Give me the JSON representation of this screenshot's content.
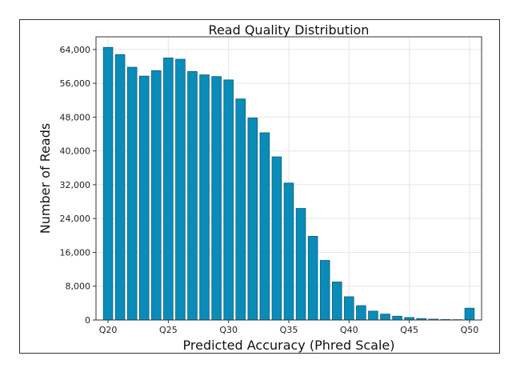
{
  "chart_data": {
    "type": "bar",
    "title": "Read Quality Distribution",
    "xlabel": "Predicted Accuracy (Phred Scale)",
    "ylabel": "Number of Reads",
    "x": [
      20,
      21,
      22,
      23,
      24,
      25,
      26,
      27,
      28,
      29,
      30,
      31,
      32,
      33,
      34,
      35,
      36,
      37,
      38,
      39,
      40,
      41,
      42,
      43,
      44,
      45,
      46,
      47,
      48,
      49,
      50
    ],
    "values": [
      64500,
      62800,
      59800,
      57700,
      59000,
      62000,
      61700,
      58800,
      58000,
      57600,
      56800,
      52300,
      47800,
      44300,
      38600,
      32400,
      26400,
      19800,
      14100,
      9000,
      5500,
      3400,
      2100,
      1400,
      900,
      600,
      350,
      200,
      120,
      80,
      2800
    ],
    "x_ticks": [
      20,
      25,
      30,
      35,
      40,
      45,
      50
    ],
    "x_tick_labels": [
      "Q20",
      "Q25",
      "Q30",
      "Q35",
      "Q40",
      "Q45",
      "Q50"
    ],
    "xlim": [
      19,
      51
    ],
    "y_ticks": [
      0,
      8000,
      16000,
      24000,
      32000,
      40000,
      48000,
      56000,
      64000
    ],
    "y_tick_labels": [
      "0",
      "8,000",
      "16,000",
      "24,000",
      "32,000",
      "40,000",
      "48,000",
      "56,000",
      "64,000"
    ],
    "ylim": [
      0,
      67000
    ],
    "grid": true,
    "bar_color": "#0a8cb8",
    "bar_edge_color": "#0b5f80"
  }
}
